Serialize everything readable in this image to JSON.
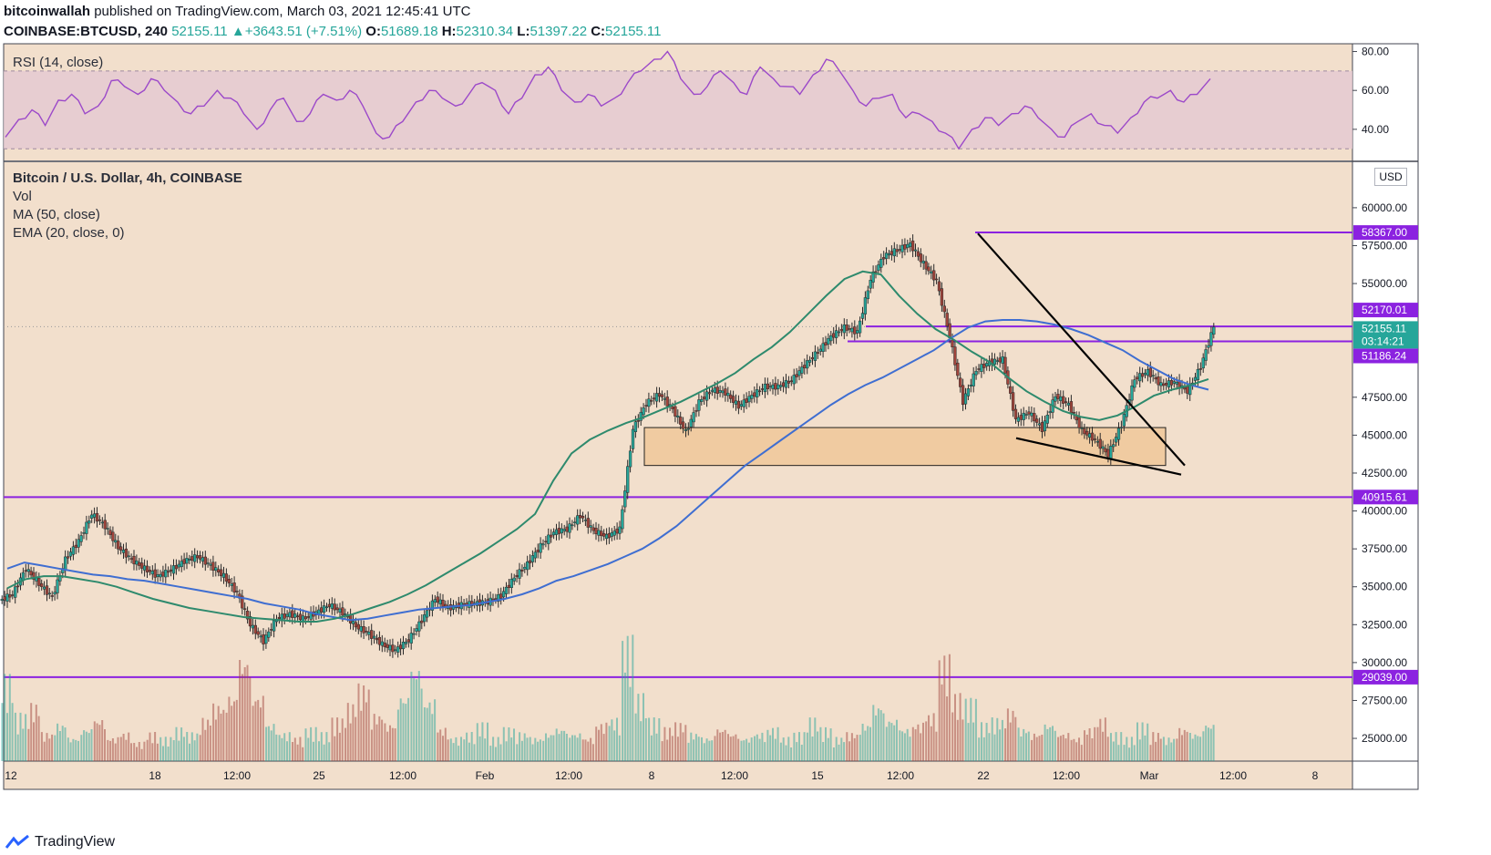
{
  "header": {
    "author": "bitcoinwallah",
    "published": "published on TradingView.com, March 03, 2021 12:45:41 UTC",
    "symbol": "COINBASE:BTCUSD, 240",
    "last": "52155.11",
    "change": "+3643.51 (+7.51%)",
    "o_label": "O:",
    "o_val": "51689.18",
    "h_label": "H:",
    "h_val": "52310.34",
    "l_label": "L:",
    "l_val": "51397.22",
    "c_label": "C:",
    "c_val": "52155.11"
  },
  "rsi": {
    "label": "RSI (14, close)",
    "ticks": [
      "80.00",
      "60.00",
      "40.00"
    ]
  },
  "main": {
    "title": "Bitcoin / U.S. Dollar, 4h, COINBASE",
    "legend": [
      "Vol",
      "MA (50, close)",
      "EMA (20, close, 0)"
    ],
    "currency": "USD"
  },
  "footer": {
    "brand": "TradingView"
  },
  "colors": {
    "background": "#f2dfcc",
    "rsi_band": "#e3c8d2",
    "rsi_line": "#9c49c9",
    "level_line": "#8b22e0",
    "up": "#26a69a",
    "down": "#a0443b",
    "ma": "#3f6ed1",
    "ema": "#2e8a6d",
    "zone": "#f0c89a"
  },
  "chart_data": [
    {
      "type": "line",
      "name": "RSI (14, close)",
      "ylim": [
        24,
        84
      ],
      "bands": [
        30,
        70
      ],
      "values": [
        36,
        45,
        50,
        42,
        55,
        58,
        48,
        52,
        65,
        62,
        58,
        66,
        60,
        54,
        48,
        52,
        60,
        56,
        48,
        40,
        50,
        56,
        44,
        48,
        58,
        55,
        60,
        52,
        38,
        36,
        44,
        54,
        60,
        56,
        52,
        58,
        64,
        60,
        48,
        56,
        68,
        72,
        60,
        54,
        58,
        52,
        56,
        64,
        70,
        76,
        80,
        66,
        58,
        62,
        70,
        64,
        58,
        72,
        66,
        62,
        58,
        68,
        76,
        70,
        60,
        52,
        56,
        58,
        46,
        48,
        44,
        38,
        30,
        40,
        46,
        42,
        48,
        52,
        46,
        40,
        36,
        44,
        48,
        42,
        38,
        46,
        54,
        56,
        60,
        54,
        58,
        66
      ],
      "ticks": [
        80,
        60,
        40
      ]
    },
    {
      "type": "candlestick",
      "title": "Bitcoin / U.S. Dollar, 4h, COINBASE",
      "ylim": [
        23500,
        63000
      ],
      "price_ticks": [
        "60000.00",
        "57500.00",
        "55000.00",
        "47500.00",
        "45000.00",
        "42500.00",
        "40000.00",
        "37500.00",
        "35000.00",
        "32500.00",
        "30000.00",
        "27500.00",
        "25000.00"
      ],
      "x_ticks": [
        "12",
        "18",
        "12:00",
        "25",
        "12:00",
        "Feb",
        "12:00",
        "8",
        "12:00",
        "15",
        "12:00",
        "22",
        "12:00",
        "Mar",
        "12:00",
        "8"
      ],
      "close": [
        34500,
        36200,
        35200,
        34300,
        36800,
        38000,
        39800,
        39000,
        37600,
        36800,
        36200,
        35700,
        36100,
        36700,
        37000,
        36400,
        35700,
        34600,
        32500,
        31400,
        32900,
        33200,
        32900,
        33300,
        33800,
        33300,
        32400,
        31900,
        31200,
        30800,
        31500,
        32800,
        34200,
        33600,
        33800,
        33900,
        34000,
        34400,
        35600,
        36500,
        37700,
        38600,
        38800,
        39700,
        38700,
        38300,
        38800,
        45400,
        47100,
        47700,
        46700,
        45200,
        47200,
        48000,
        47800,
        46900,
        47600,
        48200,
        48200,
        48600,
        49600,
        50500,
        51500,
        52100,
        51800,
        55300,
        56800,
        57200,
        57600,
        56300,
        55200,
        51500,
        47200,
        49300,
        49800,
        50000,
        46000,
        46500,
        45400,
        47600,
        47000,
        45300,
        44700,
        43700,
        45700,
        48700,
        49200,
        48300,
        48500,
        47900,
        49500,
        52155
      ],
      "ma50": [
        36200,
        36600,
        36400,
        36200,
        36000,
        35800,
        35700,
        35500,
        35400,
        35200,
        35000,
        34800,
        34600,
        34400,
        34200,
        33900,
        33700,
        33500,
        33200,
        33000,
        32800,
        32900,
        33100,
        33300,
        33500,
        33600,
        33700,
        33800,
        34000,
        34200,
        34500,
        34900,
        35400,
        35700,
        36100,
        36500,
        37000,
        37500,
        38200,
        39000,
        40000,
        41000,
        42000,
        43000,
        43800,
        44600,
        45400,
        46200,
        47000,
        47700,
        48300,
        48800,
        49400,
        50000,
        50600,
        51400,
        52100,
        52500,
        52600,
        52600,
        52500,
        52300,
        52000,
        51600,
        51100,
        50600,
        49900,
        49300,
        48700,
        48300,
        48000
      ],
      "ema20": [
        34900,
        35500,
        35700,
        35700,
        35500,
        35300,
        35000,
        34600,
        34200,
        33900,
        33600,
        33400,
        33200,
        33000,
        32900,
        32800,
        32700,
        32700,
        32900,
        33200,
        33600,
        34000,
        34500,
        35100,
        35800,
        36500,
        37200,
        38000,
        38800,
        39800,
        42000,
        43800,
        44700,
        45300,
        45800,
        46200,
        46700,
        47200,
        47800,
        48400,
        49100,
        50000,
        50800,
        51800,
        53000,
        54200,
        55300,
        55800,
        55600,
        54200,
        53000,
        52000,
        51300,
        50500,
        49800,
        48800,
        47900,
        47200,
        46600,
        46200,
        46000,
        46300,
        46900,
        47600,
        48000,
        48300,
        48700
      ],
      "levels": [
        {
          "value": 58367.0,
          "label": "58367.00"
        },
        {
          "value": 52170.01,
          "label": "52170.01"
        },
        {
          "value": 52155.11,
          "label": "52155.11",
          "sub": "03:14:21"
        },
        {
          "value": 51186.24,
          "label": "51186.24"
        },
        {
          "value": 40915.61,
          "label": "40915.61"
        },
        {
          "value": 29039.0,
          "label": "29039.00"
        }
      ],
      "zone": [
        43000,
        45500
      ],
      "volume": [
        18,
        10,
        12,
        6,
        8,
        5,
        7,
        9,
        5,
        6,
        4,
        6,
        5,
        7,
        6,
        9,
        12,
        14,
        22,
        14,
        8,
        6,
        5,
        7,
        6,
        9,
        12,
        16,
        10,
        8,
        14,
        20,
        13,
        7,
        5,
        6,
        8,
        5,
        7,
        6,
        5,
        6,
        7,
        6,
        5,
        8,
        9,
        26,
        14,
        9,
        7,
        8,
        6,
        5,
        7,
        6,
        5,
        6,
        7,
        5,
        6,
        9,
        7,
        5,
        6,
        8,
        12,
        9,
        7,
        8,
        10,
        22,
        14,
        13,
        8,
        9,
        11,
        7,
        6,
        8,
        6,
        5,
        7,
        9,
        6,
        5,
        8,
        6,
        5,
        7,
        6,
        8
      ]
    }
  ]
}
